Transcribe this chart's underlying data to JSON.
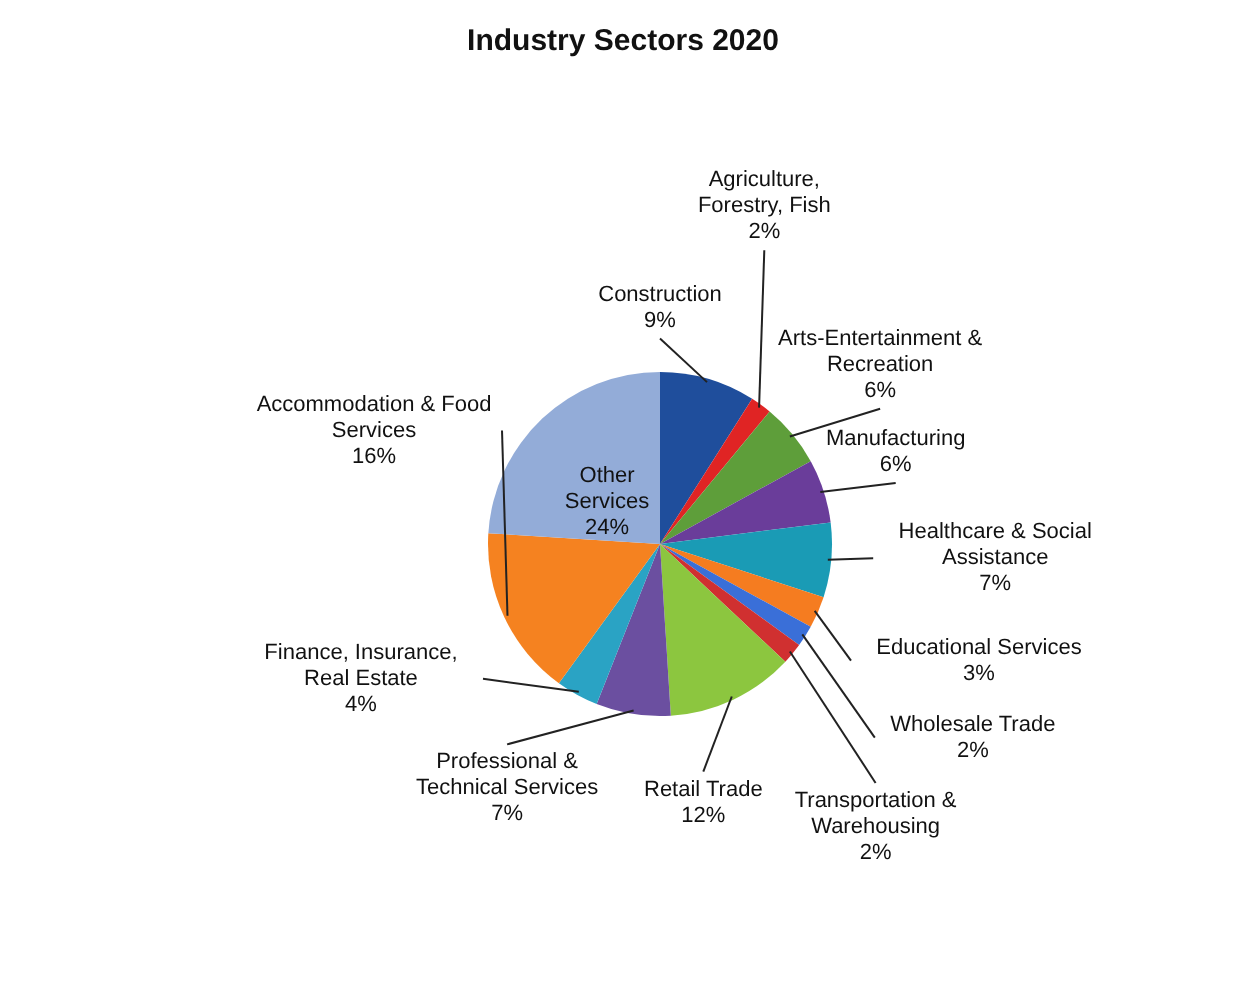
{
  "chart_data": {
    "type": "pie",
    "title": "Industry Sectors 2020",
    "categories": [
      "Construction",
      "Agriculture, Forestry, Fish",
      "Arts-Entertainment & Recreation",
      "Manufacturing",
      "Healthcare & Social Assistance",
      "Educational Services",
      "Wholesale Trade",
      "Transportation & Warehousing",
      "Retail Trade",
      "Professional & Technical Services",
      "Finance, Insurance, Real Estate",
      "Accommodation & Food Services",
      "Other Services"
    ],
    "values": [
      9,
      2,
      6,
      6,
      7,
      3,
      2,
      2,
      12,
      7,
      4,
      16,
      24
    ],
    "value_labels": [
      "9%",
      "2%",
      "6%",
      "6%",
      "7%",
      "3%",
      "2%",
      "2%",
      "12%",
      "7%",
      "4%",
      "16%",
      "24%"
    ],
    "colors": [
      "#1f4e9c",
      "#e02424",
      "#5e9e3a",
      "#6a3d9a",
      "#1a9bb5",
      "#f57c20",
      "#3a6fd8",
      "#d03030",
      "#8cc63f",
      "#6b4fa0",
      "#2aa3c4",
      "#f58220",
      "#93acd8"
    ]
  }
}
